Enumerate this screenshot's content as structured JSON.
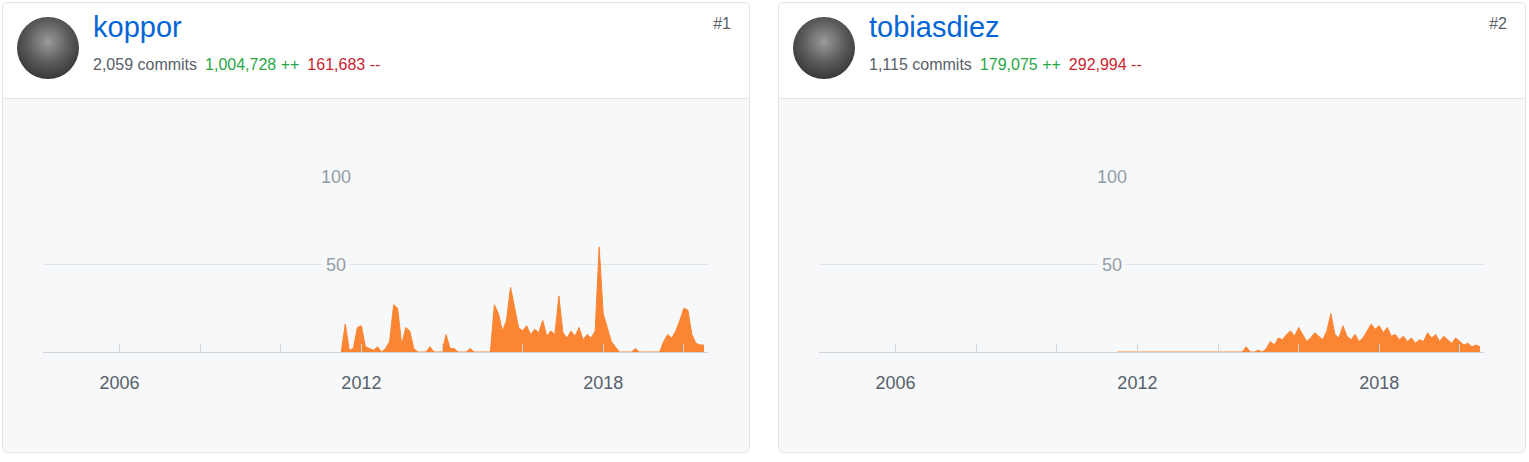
{
  "chart_data": [
    {
      "type": "area",
      "title": "koppor",
      "annotations": [
        {
          "text": "2,059 commits",
          "color": "#586069"
        },
        {
          "text": "1,004,728 ++",
          "color": "#28a745"
        },
        {
          "text": "161,683 --",
          "color": "#cb2431"
        },
        {
          "text": "#1",
          "color": "#586069"
        }
      ],
      "x": [
        2011.5,
        2011.6,
        2011.7,
        2011.8,
        2011.9,
        2012,
        2012.1,
        2012.2,
        2012.3,
        2012.4,
        2012.5,
        2012.6,
        2012.7,
        2012.8,
        2012.9,
        2013,
        2013.1,
        2013.2,
        2013.3,
        2013.4,
        2013.5,
        2013.6,
        2013.7,
        2013.8,
        2013.9,
        2014,
        2014.1,
        2014.2,
        2014.3,
        2014.4,
        2014.5,
        2014.6,
        2014.7,
        2014.8,
        2014.9,
        2015,
        2015.1,
        2015.2,
        2015.3,
        2015.4,
        2015.5,
        2015.6,
        2015.7,
        2015.8,
        2015.9,
        2016,
        2016.1,
        2016.2,
        2016.3,
        2016.4,
        2016.5,
        2016.6,
        2016.7,
        2016.8,
        2016.9,
        2017,
        2017.1,
        2017.2,
        2017.3,
        2017.4,
        2017.5,
        2017.6,
        2017.7,
        2017.8,
        2017.9,
        2018,
        2018.1,
        2018.2,
        2018.3,
        2018.4,
        2018.5,
        2018.6,
        2018.7,
        2018.8,
        2018.9,
        2019,
        2019.1,
        2019.2,
        2019.3,
        2019.4,
        2019.5,
        2019.6,
        2019.7,
        2019.8,
        2019.9,
        2020,
        2020.1,
        2020.2,
        2020.3,
        2020.4,
        2020.5
      ],
      "values": [
        0,
        16,
        1,
        2,
        14,
        15,
        3,
        2,
        1,
        3,
        0,
        2,
        6,
        27,
        25,
        4,
        14,
        12,
        2,
        0,
        0,
        0,
        3,
        0,
        0,
        0,
        10,
        2,
        2,
        0,
        0,
        0,
        2,
        0,
        0,
        0,
        0,
        0,
        27,
        22,
        12,
        18,
        37,
        25,
        14,
        12,
        15,
        10,
        13,
        11,
        18,
        9,
        12,
        10,
        32,
        11,
        8,
        12,
        9,
        14,
        7,
        10,
        8,
        12,
        60,
        22,
        14,
        6,
        3,
        0,
        0,
        0,
        0,
        2,
        0,
        0,
        0,
        0,
        0,
        0,
        6,
        10,
        8,
        12,
        18,
        25,
        24,
        10,
        5,
        4,
        4
      ],
      "color": "#fb8532",
      "xlim": [
        2004.1,
        2020.6
      ],
      "xticks": [
        2006,
        2012,
        2018
      ],
      "ylim": [
        0,
        100
      ],
      "yticks": [
        50,
        100
      ],
      "grid": true
    },
    {
      "type": "area",
      "title": "tobiasdiez",
      "annotations": [
        {
          "text": "1,115 commits",
          "color": "#586069"
        },
        {
          "text": "179,075 ++",
          "color": "#28a745"
        },
        {
          "text": "292,994 --",
          "color": "#cb2431"
        },
        {
          "text": "#2",
          "color": "#586069"
        }
      ],
      "x": [
        2011.5,
        2011.6,
        2011.7,
        2011.8,
        2011.9,
        2012,
        2012.1,
        2012.2,
        2012.3,
        2012.4,
        2012.5,
        2012.6,
        2012.7,
        2012.8,
        2012.9,
        2013,
        2013.1,
        2013.2,
        2013.3,
        2013.4,
        2013.5,
        2013.6,
        2013.7,
        2013.8,
        2013.9,
        2014,
        2014.1,
        2014.2,
        2014.3,
        2014.4,
        2014.5,
        2014.6,
        2014.7,
        2014.8,
        2014.9,
        2015,
        2015.1,
        2015.2,
        2015.3,
        2015.4,
        2015.5,
        2015.6,
        2015.7,
        2015.8,
        2015.9,
        2016,
        2016.1,
        2016.2,
        2016.3,
        2016.4,
        2016.5,
        2016.6,
        2016.7,
        2016.8,
        2016.9,
        2017,
        2017.1,
        2017.2,
        2017.3,
        2017.4,
        2017.5,
        2017.6,
        2017.7,
        2017.8,
        2017.9,
        2018,
        2018.1,
        2018.2,
        2018.3,
        2018.4,
        2018.5,
        2018.6,
        2018.7,
        2018.8,
        2018.9,
        2019,
        2019.1,
        2019.2,
        2019.3,
        2019.4,
        2019.5,
        2019.6,
        2019.7,
        2019.8,
        2019.9,
        2020,
        2020.1,
        2020.2,
        2020.3,
        2020.4,
        2020.5
      ],
      "values": [
        0,
        0,
        0,
        0,
        0,
        0,
        0,
        0,
        0,
        0,
        0,
        0,
        0,
        0,
        0,
        0,
        0,
        0,
        0,
        0,
        0,
        0,
        0,
        0,
        0,
        0,
        0,
        0,
        0,
        0,
        0,
        0,
        3,
        0,
        0,
        1,
        0,
        2,
        6,
        4,
        8,
        7,
        10,
        12,
        9,
        14,
        10,
        6,
        8,
        11,
        9,
        7,
        12,
        22,
        10,
        8,
        15,
        9,
        7,
        10,
        6,
        8,
        12,
        16,
        13,
        15,
        11,
        14,
        9,
        10,
        7,
        9,
        6,
        8,
        5,
        7,
        6,
        11,
        8,
        10,
        6,
        9,
        7,
        5,
        8,
        6,
        4,
        5,
        3,
        4,
        3
      ],
      "color": "#fb8532",
      "xlim": [
        2004.1,
        2020.6
      ],
      "xticks": [
        2006,
        2012,
        2018
      ],
      "ylim": [
        0,
        100
      ],
      "yticks": [
        50,
        100
      ],
      "grid": true
    }
  ]
}
